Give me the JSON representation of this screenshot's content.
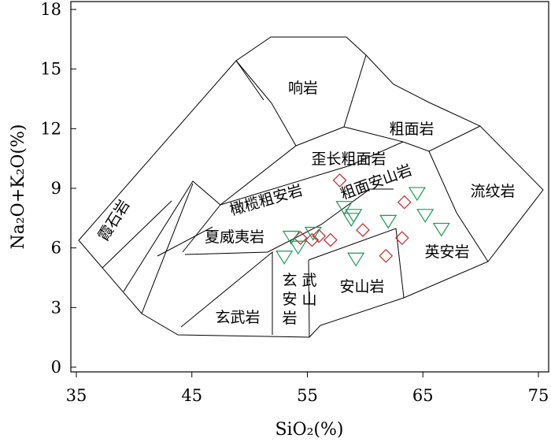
{
  "chart_data": {
    "type": "scatter",
    "subtype": "TAS classification diagram",
    "xlabel": "SiO₂(%)",
    "ylabel": "Na₂O+K₂O(%)",
    "xlim": [
      35,
      75
    ],
    "ylim": [
      0,
      18
    ],
    "xticks": [
      35,
      45,
      55,
      65,
      75
    ],
    "yticks": [
      0,
      3,
      6,
      9,
      12,
      15,
      18
    ],
    "grid": false,
    "field_labels": [
      {
        "id": "nephelinite",
        "text": "霞石岩"
      },
      {
        "id": "phonolite",
        "text": "响岩"
      },
      {
        "id": "trachyte",
        "text": "粗面岩"
      },
      {
        "id": "trachyandesite",
        "text": "歪长粗面岩"
      },
      {
        "id": "trachyandesite2",
        "text": "粗面安山岩"
      },
      {
        "id": "basaltic-trachyandesite",
        "text": "橄榄粗安岩"
      },
      {
        "id": "rhyolite",
        "text": "流纹岩"
      },
      {
        "id": "hawaiite",
        "text": "夏威夷岩"
      },
      {
        "id": "dacite",
        "text": "英安岩"
      },
      {
        "id": "basaltic-andesite",
        "text": "玄武安山岩"
      },
      {
        "id": "andesite",
        "text": "安山岩"
      },
      {
        "id": "basalt",
        "text": "玄武岩"
      }
    ],
    "series": [
      {
        "marker": "diamond",
        "color": "#c0282d",
        "points": [
          {
            "x": 57.8,
            "y": 9.4
          },
          {
            "x": 54.4,
            "y": 6.5
          },
          {
            "x": 55.4,
            "y": 6.4
          },
          {
            "x": 56.0,
            "y": 6.6
          },
          {
            "x": 57.0,
            "y": 6.4
          },
          {
            "x": 59.8,
            "y": 6.9
          },
          {
            "x": 61.8,
            "y": 5.6
          },
          {
            "x": 63.2,
            "y": 6.5
          },
          {
            "x": 63.4,
            "y": 8.3
          }
        ]
      },
      {
        "marker": "triangle-down",
        "color": "#1a9a57",
        "points": [
          {
            "x": 53.0,
            "y": 5.6
          },
          {
            "x": 53.6,
            "y": 6.6
          },
          {
            "x": 54.2,
            "y": 6.1
          },
          {
            "x": 55.5,
            "y": 6.8
          },
          {
            "x": 58.2,
            "y": 8.1
          },
          {
            "x": 58.8,
            "y": 7.5
          },
          {
            "x": 59.0,
            "y": 7.7
          },
          {
            "x": 59.2,
            "y": 5.5
          },
          {
            "x": 62.0,
            "y": 7.4
          },
          {
            "x": 64.5,
            "y": 8.8
          },
          {
            "x": 65.2,
            "y": 7.7
          },
          {
            "x": 66.6,
            "y": 7.0
          }
        ]
      }
    ]
  }
}
